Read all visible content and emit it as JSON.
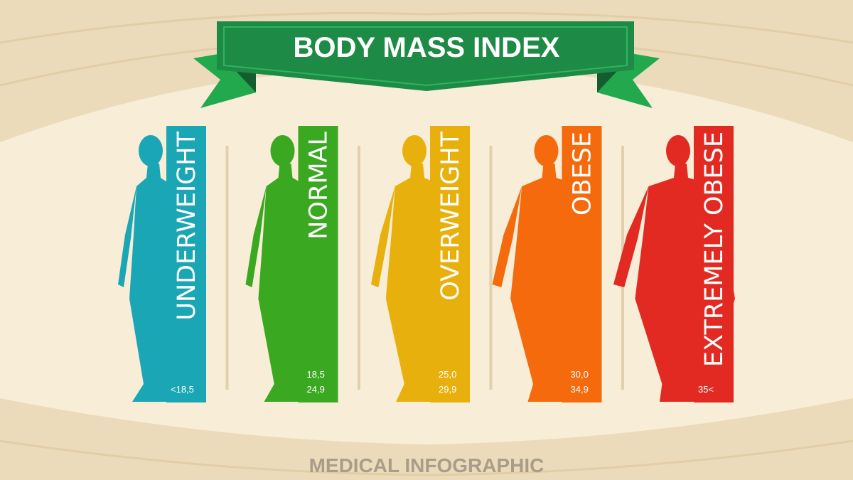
{
  "title": "BODY MASS INDEX",
  "categories": [
    {
      "label": "UNDERWEIGHT",
      "range": [
        "<18,5"
      ],
      "color": "#1aa6b4"
    },
    {
      "label": "NORMAL",
      "range": [
        "18,5",
        "24,9"
      ],
      "color": "#3aa821"
    },
    {
      "label": "OVERWEIGHT",
      "range": [
        "25,0",
        "29,9"
      ],
      "color": "#e8b00c"
    },
    {
      "label": "OBESE",
      "range": [
        "30,0",
        "34,9"
      ],
      "color": "#f46a0c"
    },
    {
      "label": "EXTREMELY OBESE",
      "range": [
        "35<"
      ],
      "color": "#e22a22"
    }
  ],
  "footer": "MEDICAL INFOGRAPHIC"
}
